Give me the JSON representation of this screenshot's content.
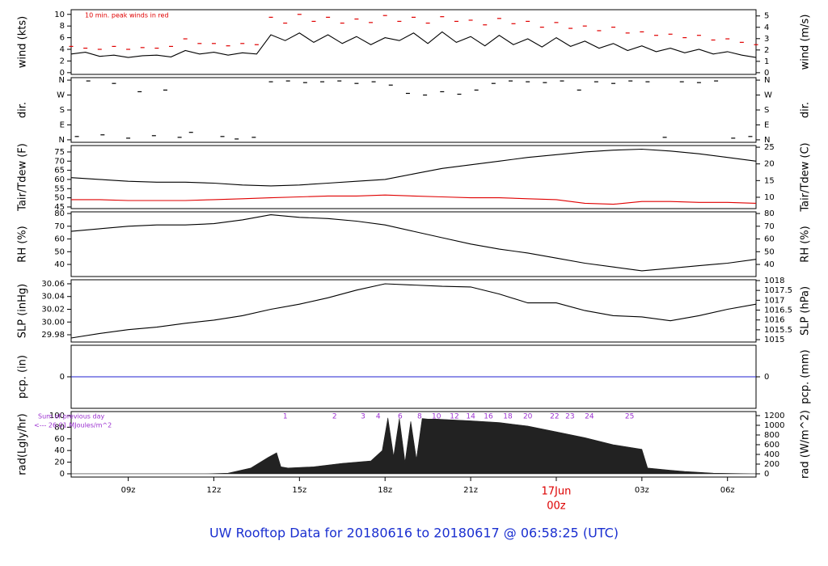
{
  "title": "UW Rooftop Data for 20180616  to  20180617 @ 06:58:25  (UTC)",
  "title_color": "#1a2fd0",
  "chart_data": [
    {
      "type": "line",
      "ylabel": "wind (kts)",
      "y2label": "wind (m/s)",
      "annotation": {
        "text": "10 min. peak winds in red",
        "color": "#e00000"
      },
      "xlim": [
        7,
        31
      ],
      "ylim": [
        -0.3,
        10.8
      ],
      "yticks": [
        0,
        2,
        4,
        6,
        8,
        10
      ],
      "y2lim": [
        -0.15,
        5.55
      ],
      "y2ticks": [
        0,
        1,
        2,
        3,
        4,
        5
      ],
      "x": [
        7,
        7.5,
        8,
        8.5,
        9,
        9.5,
        10,
        10.5,
        11,
        11.5,
        12,
        12.5,
        13,
        13.5,
        14,
        14.5,
        15,
        15.5,
        16,
        16.5,
        17,
        17.5,
        18,
        18.5,
        19,
        19.5,
        20,
        20.5,
        21,
        21.5,
        22,
        22.5,
        23,
        23.5,
        24,
        24.5,
        25,
        25.5,
        26,
        26.5,
        27,
        27.5,
        28,
        28.5,
        29,
        29.5,
        30,
        30.5,
        31
      ],
      "series": [
        {
          "color": "#000000",
          "marker": "line",
          "values": [
            3.2,
            3.5,
            2.8,
            3,
            2.6,
            2.9,
            3,
            2.7,
            3.8,
            3.2,
            3.5,
            3,
            3.4,
            3.2,
            6.5,
            5.5,
            6.8,
            5.2,
            6.5,
            5,
            6.2,
            4.8,
            6,
            5.5,
            6.8,
            5,
            7,
            5.2,
            6.2,
            4.6,
            6.4,
            4.8,
            5.8,
            4.4,
            6,
            4.5,
            5.4,
            4.2,
            5,
            3.8,
            4.6,
            3.6,
            4.2,
            3.4,
            4,
            3.2,
            3.6,
            3,
            2.6
          ]
        },
        {
          "color": "#e00000",
          "marker": "dash",
          "values": [
            4.5,
            4.2,
            4,
            4.5,
            4,
            4.3,
            4.2,
            4.5,
            5.8,
            5,
            5,
            4.6,
            5,
            4.8,
            9.5,
            8.5,
            10,
            8.8,
            9.5,
            8.5,
            9.2,
            8.6,
            9.8,
            8.8,
            9.5,
            8.5,
            9.6,
            8.8,
            9,
            8.2,
            9.3,
            8.4,
            8.8,
            7.8,
            8.6,
            7.6,
            8,
            7.2,
            7.8,
            6.8,
            7,
            6.4,
            6.6,
            6,
            6.4,
            5.6,
            5.8,
            5.2,
            4.8
          ]
        }
      ]
    },
    {
      "type": "scatter",
      "ylabel": "dir.",
      "y2label": "dir.",
      "xlim": [
        7,
        31
      ],
      "ylim": [
        -15,
        375
      ],
      "yticks": [
        {
          "value": 360,
          "label": "N"
        },
        {
          "value": 270,
          "label": "W"
        },
        {
          "value": 180,
          "label": "S"
        },
        {
          "value": 90,
          "label": "E"
        },
        {
          "value": 0,
          "label": "N"
        }
      ],
      "y2lim": [
        -15,
        375
      ],
      "y2ticks": [
        {
          "value": 360,
          "label": "N"
        },
        {
          "value": 270,
          "label": "W"
        },
        {
          "value": 180,
          "label": "S"
        },
        {
          "value": 90,
          "label": "E"
        },
        {
          "value": 0,
          "label": "N"
        }
      ],
      "x": [
        7.2,
        7.6,
        8.1,
        8.5,
        9,
        9.4,
        9.9,
        10.3,
        10.8,
        11.2,
        12.3,
        12.8,
        13.4,
        14,
        14.6,
        15.2,
        15.8,
        16.4,
        17,
        17.6,
        18.2,
        18.8,
        19.4,
        20,
        20.6,
        21.2,
        21.8,
        22.4,
        23,
        23.6,
        24.2,
        24.8,
        25.4,
        26,
        26.6,
        27.2,
        27.8,
        28.4,
        29,
        29.6,
        30.2,
        30.8
      ],
      "series": [
        {
          "color": "#000000",
          "marker": "dash",
          "values": [
            20,
            355,
            30,
            340,
            10,
            290,
            25,
            300,
            15,
            45,
            20,
            5,
            15,
            350,
            355,
            345,
            350,
            355,
            340,
            350,
            330,
            280,
            270,
            290,
            275,
            300,
            340,
            355,
            350,
            345,
            355,
            300,
            350,
            340,
            355,
            350,
            15,
            350,
            345,
            355,
            10,
            20
          ]
        }
      ]
    },
    {
      "type": "line",
      "ylabel": "Tair/Tdew (F)",
      "y2label": "Tair/Tdew (C)",
      "xlim": [
        7,
        31
      ],
      "ylim": [
        44.1,
        78.5
      ],
      "yticks": [
        45,
        50,
        55,
        60,
        65,
        70,
        75
      ],
      "y2lim": [
        6.6,
        25.5
      ],
      "y2ticks": [
        10,
        15,
        20,
        25
      ],
      "x": [
        7,
        8,
        9,
        10,
        11,
        12,
        13,
        14,
        15,
        16,
        17,
        18,
        19,
        20,
        21,
        22,
        23,
        24,
        25,
        26,
        27,
        28,
        29,
        30,
        31
      ],
      "series": [
        {
          "color": "#000000",
          "marker": "line",
          "values": [
            61,
            60,
            59,
            58.5,
            58.5,
            58,
            57,
            56.5,
            57,
            58,
            59,
            60,
            63,
            66,
            68,
            70,
            72,
            73.5,
            75,
            76,
            76.5,
            75.5,
            74,
            72,
            70
          ]
        },
        {
          "color": "#e00000",
          "marker": "line",
          "values": [
            49,
            49,
            48.5,
            48.5,
            48.5,
            49,
            49.5,
            50,
            50.5,
            51,
            51,
            51.5,
            51,
            50.5,
            50,
            50,
            49.5,
            49,
            47,
            46.5,
            48,
            48,
            47.5,
            47.5,
            47
          ]
        }
      ]
    },
    {
      "type": "line",
      "ylabel": "RH (%)",
      "y2label": "RH (%)",
      "xlim": [
        7,
        31
      ],
      "ylim": [
        30.5,
        81.3
      ],
      "yticks": [
        40,
        50,
        60,
        70,
        80
      ],
      "y2lim": [
        30.5,
        81.3
      ],
      "y2ticks": [
        40,
        50,
        60,
        70,
        80
      ],
      "x": [
        7,
        8,
        9,
        10,
        11,
        12,
        13,
        14,
        15,
        16,
        17,
        18,
        19,
        20,
        21,
        22,
        23,
        24,
        25,
        26,
        27,
        28,
        29,
        30,
        31
      ],
      "series": [
        {
          "color": "#000000",
          "marker": "line",
          "values": [
            66,
            68,
            70,
            71,
            71,
            72,
            75,
            79,
            77,
            76,
            74,
            71,
            66,
            61,
            56,
            52,
            49,
            45,
            41,
            38,
            35,
            37,
            39,
            41,
            44
          ]
        }
      ]
    },
    {
      "type": "line",
      "ylabel": "SLP (inHg)",
      "y2label": "SLP (hPa)",
      "xlim": [
        7,
        31
      ],
      "ylim": [
        29.9686,
        30.0663
      ],
      "yticks": [
        29.98,
        {
          "value": 30,
          "label": "30.00"
        },
        30.02,
        30.04,
        30.06
      ],
      "y2lim": [
        1014.88,
        1018.04
      ],
      "y2ticks": [
        1015,
        1015.5,
        1016,
        1016.5,
        1017,
        1017.5,
        1018
      ],
      "x": [
        7,
        8,
        9,
        10,
        11,
        12,
        13,
        14,
        15,
        16,
        17,
        18,
        19,
        20,
        21,
        22,
        23,
        24,
        25,
        26,
        27,
        28,
        29,
        30,
        31
      ],
      "series": [
        {
          "color": "#000000",
          "marker": "line",
          "values": [
            29.975,
            29.982,
            29.988,
            29.992,
            29.998,
            30.003,
            30.01,
            30.02,
            30.028,
            30.038,
            30.05,
            30.06,
            30.058,
            30.056,
            30.055,
            30.044,
            30.03,
            30.03,
            30.018,
            30.01,
            30.008,
            30.002,
            30.01,
            30.02,
            30.028
          ]
        }
      ]
    },
    {
      "type": "line",
      "ylabel": "pcp. (in)",
      "y2label": "pcp. (mm)",
      "xlim": [
        7,
        31
      ],
      "ylim": [
        -1,
        1
      ],
      "yticks": [
        0
      ],
      "y2lim": [
        -25.4,
        25.4
      ],
      "y2ticks": [
        0
      ],
      "x": [
        7,
        31
      ],
      "series": [
        {
          "color": "#2020d0",
          "marker": "line",
          "values": [
            0,
            0
          ]
        }
      ]
    },
    {
      "type": "area",
      "ylabel": "rad(Lgly/hr)",
      "y2label": "rad (W/m^2)",
      "xlim": [
        7,
        31
      ],
      "ylim": [
        -5.6,
        106.9
      ],
      "yticks": [
        0,
        20,
        40,
        60,
        80,
        100
      ],
      "y2lim": [
        -67,
        1283
      ],
      "y2ticks": [
        0,
        200,
        400,
        600,
        800,
        1000,
        1200
      ],
      "notes": [
        "Sum of previous day",
        "<--- 26.01 MJoules/m^2"
      ],
      "notes_color": "#9b30d0",
      "sun_markers": {
        "color": "#9b30d0",
        "x": [
          14.5,
          16.23,
          17.23,
          17.76,
          18.53,
          19.21,
          19.8,
          20.43,
          21.0,
          21.62,
          22.3,
          23.0,
          23.94,
          24.48,
          25.16,
          26.57
        ],
        "values": [
          1,
          2,
          3,
          4,
          6,
          8,
          10,
          12,
          14,
          16,
          18,
          20,
          22,
          23,
          24,
          25
        ]
      },
      "xticks": [
        {
          "value": 9,
          "label": "09z"
        },
        {
          "value": 12,
          "label": "12z"
        },
        {
          "value": 15,
          "label": "15z"
        },
        {
          "value": 18,
          "label": "18z"
        },
        {
          "value": 21,
          "label": "21z"
        },
        {
          "value": 24,
          "label": "00z"
        },
        {
          "value": 27,
          "label": "03z"
        },
        {
          "value": 30,
          "label": "06z"
        }
      ],
      "date_label": {
        "value": 24,
        "label": "17Jun",
        "color": "#dd0000"
      },
      "x": [
        7,
        11.7,
        12.5,
        13.3,
        13.9,
        14.2,
        14.35,
        14.6,
        15.5,
        16.5,
        17.5,
        17.9,
        18.1,
        18.3,
        18.5,
        18.7,
        18.9,
        19.1,
        19.3,
        19.5,
        19.8,
        21,
        22,
        23,
        24,
        25,
        26,
        27,
        27.2,
        28,
        28.5,
        29.5,
        31
      ],
      "series": [
        {
          "color": "#222222",
          "marker": "area",
          "values": [
            0,
            0,
            1,
            10,
            28,
            36,
            12,
            10,
            12,
            18,
            22,
            40,
            96,
            30,
            95,
            20,
            90,
            25,
            95,
            94,
            94,
            91,
            88,
            82,
            72,
            62,
            50,
            42,
            10,
            6,
            4,
            1,
            0
          ]
        }
      ]
    }
  ]
}
